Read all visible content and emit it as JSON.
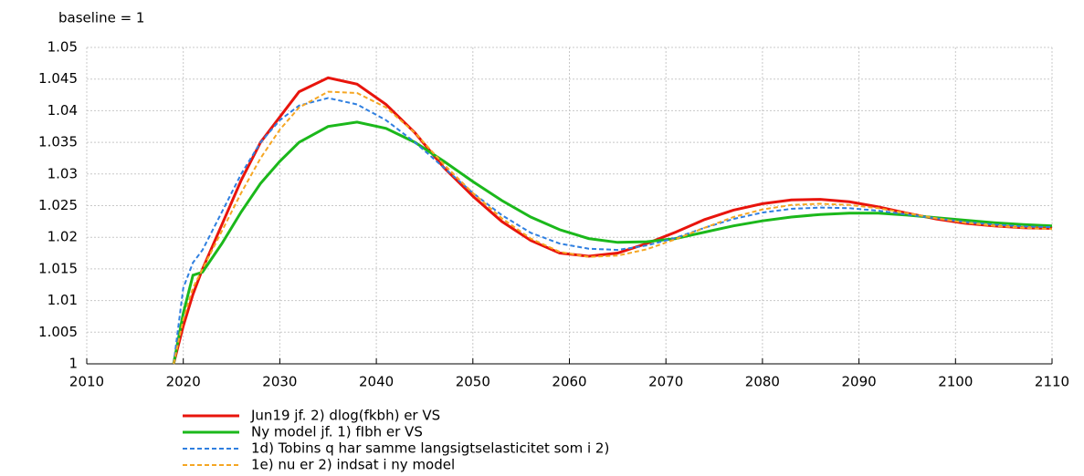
{
  "chart_data": {
    "type": "line",
    "subtitle": "baseline = 1",
    "x": [
      2019,
      2020,
      2021,
      2022,
      2024,
      2026,
      2028,
      2030,
      2032,
      2035,
      2038,
      2041,
      2044,
      2047,
      2050,
      2053,
      2056,
      2059,
      2062,
      2065,
      2068,
      2071,
      2074,
      2077,
      2080,
      2083,
      2086,
      2089,
      2092,
      2095,
      2098,
      2101,
      2104,
      2107,
      2110
    ],
    "series": [
      {
        "name": "Jun19 jf. 2) dlog(fkbh) er VS",
        "color": "#e8140c",
        "dashed": false,
        "values": [
          1.0,
          1.006,
          1.011,
          1.015,
          1.022,
          1.029,
          1.035,
          1.039,
          1.043,
          1.0452,
          1.0442,
          1.041,
          1.0365,
          1.031,
          1.0265,
          1.0225,
          1.0195,
          1.0175,
          1.017,
          1.0175,
          1.019,
          1.0208,
          1.0228,
          1.0243,
          1.0253,
          1.0259,
          1.026,
          1.0256,
          1.0248,
          1.0238,
          1.0229,
          1.0222,
          1.0218,
          1.0215,
          1.0214
        ]
      },
      {
        "name": "Ny model jf. 1) fIbh er VS",
        "color": "#1bb81b",
        "dashed": false,
        "values": [
          1.0,
          1.008,
          1.014,
          1.0145,
          1.019,
          1.024,
          1.0285,
          1.032,
          1.035,
          1.0375,
          1.0382,
          1.0372,
          1.035,
          1.032,
          1.0288,
          1.0258,
          1.0232,
          1.0212,
          1.0198,
          1.0192,
          1.0193,
          1.0198,
          1.0208,
          1.0218,
          1.0226,
          1.0232,
          1.0236,
          1.0238,
          1.0238,
          1.0235,
          1.0231,
          1.0227,
          1.0223,
          1.022,
          1.0218
        ]
      },
      {
        "name": "1d) Tobins q har samme langsigtselasticitet som i 2)",
        "color": "#2f7fe0",
        "dashed": true,
        "values": [
          1.0,
          1.012,
          1.016,
          1.018,
          1.024,
          1.03,
          1.035,
          1.0385,
          1.0408,
          1.042,
          1.041,
          1.0385,
          1.035,
          1.031,
          1.027,
          1.0235,
          1.0207,
          1.019,
          1.0182,
          1.018,
          1.0187,
          1.0199,
          1.0215,
          1.0229,
          1.0239,
          1.0245,
          1.0247,
          1.0246,
          1.0242,
          1.0236,
          1.023,
          1.0224,
          1.022,
          1.0217,
          1.0216
        ]
      },
      {
        "name": "1e) nu er 2) indsat i ny model",
        "color": "#f5a623",
        "dashed": true,
        "values": [
          1.0,
          1.007,
          1.012,
          1.015,
          1.021,
          1.027,
          1.0325,
          1.037,
          1.0405,
          1.043,
          1.0428,
          1.0405,
          1.0365,
          1.0315,
          1.027,
          1.023,
          1.0198,
          1.0177,
          1.0169,
          1.0171,
          1.0181,
          1.0197,
          1.0215,
          1.0232,
          1.0244,
          1.0251,
          1.0253,
          1.0251,
          1.0246,
          1.0238,
          1.023,
          1.0223,
          1.0218,
          1.0215,
          1.0213
        ]
      }
    ],
    "xlim": [
      2010,
      2110
    ],
    "xticks": [
      2010,
      2020,
      2030,
      2040,
      2050,
      2060,
      2070,
      2080,
      2090,
      2100,
      2110
    ],
    "ylim": [
      1,
      1.05
    ],
    "yticks": [
      1,
      1.005,
      1.01,
      1.015,
      1.02,
      1.025,
      1.03,
      1.035,
      1.04,
      1.045,
      1.05
    ],
    "grid": true,
    "legend": "bottom"
  }
}
